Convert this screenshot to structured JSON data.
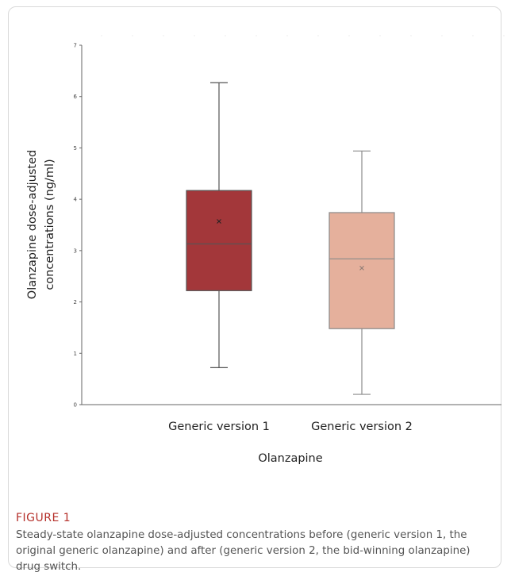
{
  "figure": {
    "label": "FIGURE 1",
    "caption": "Steady-state olanzapine dose-adjusted concentrations before (generic version 1, the original generic olanzapine) and after (generic version 2, the bid-winning olanzapine) drug switch."
  },
  "chart_data": {
    "type": "box",
    "title": "",
    "xlabel": "Olanzapine",
    "ylabel_lines": [
      "Olanzapine dose-adjusted",
      "concentrations (ng/ml)"
    ],
    "ylim": [
      0,
      7
    ],
    "yticks": [
      0,
      1,
      2,
      3,
      4,
      5,
      6,
      7
    ],
    "grid": false,
    "legend": "none",
    "categories": [
      "Generic version 1",
      "Generic version 2"
    ],
    "boxes": [
      {
        "category": "Generic version 1",
        "min": 0.72,
        "q1": 2.22,
        "median": 3.13,
        "q3": 4.17,
        "max": 6.27,
        "mean": 3.57,
        "fill": "#a3373a",
        "stroke": "#555555",
        "mean_marker": "#222222"
      },
      {
        "category": "Generic version 2",
        "min": 0.2,
        "q1": 1.48,
        "median": 2.84,
        "q3": 3.74,
        "max": 4.94,
        "mean": 2.66,
        "fill": "#e5b09c",
        "stroke": "#8a8a8a",
        "mean_marker": "#8a7a74"
      }
    ]
  }
}
